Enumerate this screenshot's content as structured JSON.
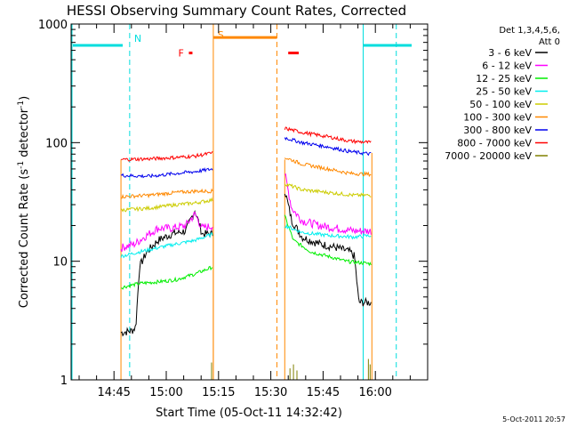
{
  "chart_data": {
    "type": "line",
    "title": "HESSI Observing Summary Count Rates, Corrected",
    "xlabel": "Start Time (05-Oct-11 14:32:42)",
    "ylabel_main": "Corrected Count Rate (s",
    "ylabel_sup": "-1",
    "ylabel_rest": " detector",
    "ylabel_sup2": "-1",
    "ylabel_close": ")",
    "ylog": true,
    "ylim": [
      1,
      1000
    ],
    "xlim": [
      "14:32:42",
      "16:15:00"
    ],
    "x_ticks": [
      "14:45",
      "15:00",
      "15:15",
      "15:30",
      "15:45",
      "16:00"
    ],
    "y_ticks": [
      "1",
      "10",
      "100",
      "1000"
    ],
    "legend_title": [
      "Det 1,3,4,5,6,",
      "Att 0"
    ],
    "legend_position": "top-right",
    "date_stamp": "5-Oct-2011 20:57",
    "segments": [
      [
        "14:47:00",
        "15:13:30"
      ],
      [
        "15:34:00",
        "15:59:00"
      ]
    ],
    "series": [
      {
        "name": "3 - 6 keV",
        "color": "#000000",
        "s1": [
          [
            0,
            2.5
          ],
          [
            0.12,
            2.6
          ],
          [
            0.16,
            2.8
          ],
          [
            0.2,
            9
          ],
          [
            0.28,
            12
          ],
          [
            0.4,
            15
          ],
          [
            0.55,
            17
          ],
          [
            0.7,
            18
          ],
          [
            0.8,
            27
          ],
          [
            0.88,
            17
          ],
          [
            1,
            17
          ]
        ],
        "s2": [
          [
            0,
            40
          ],
          [
            0.08,
            22
          ],
          [
            0.2,
            16
          ],
          [
            0.4,
            14
          ],
          [
            0.6,
            13
          ],
          [
            0.75,
            12
          ],
          [
            0.8,
            11
          ],
          [
            0.85,
            4.5
          ],
          [
            1,
            4.5
          ]
        ]
      },
      {
        "name": "6 - 12 keV",
        "color": "#ff00ff",
        "s1": [
          [
            0,
            13
          ],
          [
            0.15,
            14
          ],
          [
            0.25,
            16
          ],
          [
            0.4,
            19
          ],
          [
            0.55,
            19
          ],
          [
            0.7,
            20
          ],
          [
            0.8,
            25
          ],
          [
            0.88,
            19
          ],
          [
            1,
            20
          ]
        ],
        "s2": [
          [
            0,
            55
          ],
          [
            0.08,
            28
          ],
          [
            0.2,
            22
          ],
          [
            0.4,
            20
          ],
          [
            0.6,
            19
          ],
          [
            0.8,
            18
          ],
          [
            1,
            18
          ]
        ]
      },
      {
        "name": "12 - 25 keV",
        "color": "#00ee00",
        "s1": [
          [
            0,
            6
          ],
          [
            0.2,
            6.5
          ],
          [
            0.4,
            6.7
          ],
          [
            0.6,
            7
          ],
          [
            0.8,
            7.8
          ],
          [
            1,
            9
          ]
        ],
        "s2": [
          [
            0,
            24
          ],
          [
            0.1,
            15
          ],
          [
            0.3,
            12
          ],
          [
            0.5,
            11
          ],
          [
            0.7,
            10
          ],
          [
            1,
            9.5
          ]
        ]
      },
      {
        "name": "25 - 50 keV",
        "color": "#00eeee",
        "s1": [
          [
            0,
            11
          ],
          [
            0.2,
            12
          ],
          [
            0.4,
            13
          ],
          [
            0.6,
            14
          ],
          [
            0.8,
            15
          ],
          [
            1,
            17
          ]
        ],
        "s2": [
          [
            0,
            20
          ],
          [
            0.2,
            17.5
          ],
          [
            0.5,
            16.5
          ],
          [
            0.8,
            16
          ],
          [
            1,
            16.5
          ]
        ]
      },
      {
        "name": "50 - 100 keV",
        "color": "#cccc00",
        "s1": [
          [
            0,
            27
          ],
          [
            0.3,
            28
          ],
          [
            0.6,
            30
          ],
          [
            0.8,
            31
          ],
          [
            1,
            33
          ]
        ],
        "s2": [
          [
            0,
            45
          ],
          [
            0.2,
            40
          ],
          [
            0.5,
            38
          ],
          [
            0.8,
            36
          ],
          [
            1,
            36
          ]
        ]
      },
      {
        "name": "100 - 300 keV",
        "color": "#ff8800",
        "s1": [
          [
            0,
            35
          ],
          [
            0.3,
            36
          ],
          [
            0.6,
            38
          ],
          [
            0.8,
            39
          ],
          [
            1,
            39
          ]
        ],
        "s2": [
          [
            0,
            75
          ],
          [
            0.2,
            66
          ],
          [
            0.5,
            60
          ],
          [
            0.75,
            55
          ],
          [
            1,
            54
          ]
        ]
      },
      {
        "name": "300 - 800 keV",
        "color": "#0000ee",
        "s1": [
          [
            0,
            53
          ],
          [
            0.3,
            52
          ],
          [
            0.6,
            55
          ],
          [
            0.8,
            57
          ],
          [
            1,
            60
          ]
        ],
        "s2": [
          [
            0,
            110
          ],
          [
            0.2,
            100
          ],
          [
            0.5,
            92
          ],
          [
            0.75,
            84
          ],
          [
            1,
            80
          ]
        ]
      },
      {
        "name": "800 - 7000 keV",
        "color": "#ff0000",
        "s1": [
          [
            0,
            72
          ],
          [
            0.3,
            73
          ],
          [
            0.6,
            75
          ],
          [
            0.8,
            77
          ],
          [
            1,
            82
          ]
        ],
        "s2": [
          [
            0,
            132
          ],
          [
            0.2,
            122
          ],
          [
            0.5,
            112
          ],
          [
            0.75,
            103
          ],
          [
            1,
            100
          ]
        ]
      },
      {
        "name": "7000 - 20000 keV",
        "color": "#808000",
        "s1": [],
        "s2": []
      }
    ],
    "saa_markers": [
      {
        "label": "N",
        "color": "#00dddd",
        "x": "14:49:30"
      },
      {
        "label": "S",
        "color": "#ff8800",
        "x": "15:16:00"
      }
    ],
    "flare_marker": {
      "label": "F",
      "color": "#ff0000",
      "x": "15:07:00",
      "y": 570
    }
  }
}
